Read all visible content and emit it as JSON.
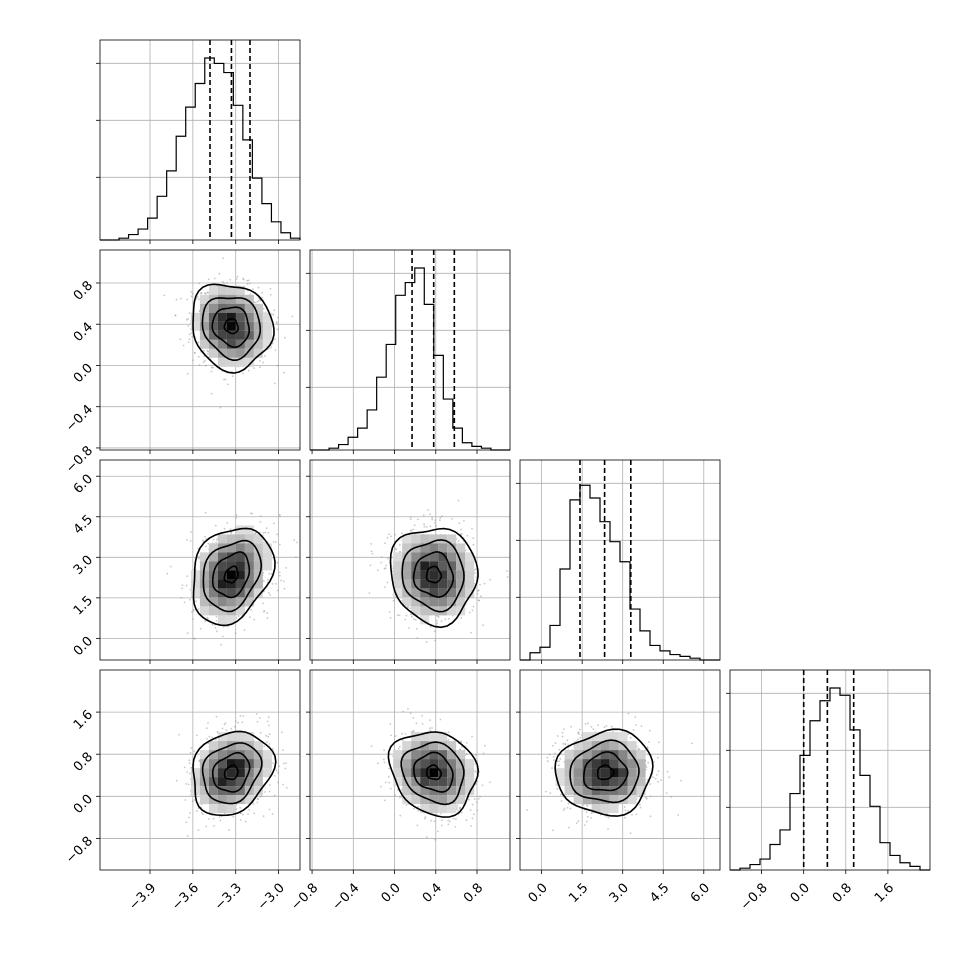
{
  "chart_data": {
    "type": "corner",
    "parameters": [
      {
        "ticks": [
          -3.9,
          -3.6,
          -3.3,
          -3.0
        ],
        "tick_labels": [
          "−3.9",
          "−3.6",
          "−3.3",
          "−3.0"
        ],
        "range": [
          -4.25,
          -2.85
        ],
        "mean": -3.33,
        "sd": 0.135,
        "quantiles": [
          -3.48,
          -3.33,
          -3.2
        ],
        "hist": [
          0,
          0,
          0.01,
          0.03,
          0.06,
          0.12,
          0.24,
          0.38,
          0.57,
          0.73,
          0.86,
          1.0,
          0.97,
          0.92,
          0.74,
          0.55,
          0.34,
          0.2,
          0.1,
          0.04,
          0.01
        ]
      },
      {
        "ticks": [
          -0.8,
          -0.4,
          0.0,
          0.4,
          0.8
        ],
        "tick_labels": [
          "−0.8",
          "−0.4",
          "0.0",
          "0.4",
          "0.8"
        ],
        "range": [
          -0.82,
          1.12
        ],
        "mean": 0.38,
        "sd": 0.2,
        "quantiles": [
          0.17,
          0.38,
          0.58
        ],
        "hist": [
          0,
          0,
          0.01,
          0.03,
          0.07,
          0.12,
          0.22,
          0.4,
          0.58,
          0.85,
          0.92,
          1.0,
          0.8,
          0.52,
          0.28,
          0.12,
          0.04,
          0.02,
          0.01,
          0,
          0
        ]
      },
      {
        "ticks": [
          0.0,
          1.5,
          3.0,
          4.5,
          6.0
        ],
        "tick_labels": [
          "0.0",
          "1.5",
          "3.0",
          "4.5",
          "6.0"
        ],
        "range": [
          -0.8,
          6.6
        ],
        "mean": 2.35,
        "sd": 0.85,
        "quantiles": [
          1.42,
          2.33,
          3.3
        ],
        "hist": [
          0,
          0.04,
          0.07,
          0.19,
          0.5,
          0.88,
          0.96,
          0.89,
          0.76,
          0.65,
          0.54,
          0.28,
          0.16,
          0.08,
          0.05,
          0.03,
          0.02,
          0.01,
          0,
          0
        ]
      },
      {
        "ticks": [
          -0.8,
          0.0,
          0.8,
          1.6
        ],
        "tick_labels": [
          "−0.8",
          "0.0",
          "0.8",
          "1.6"
        ],
        "range": [
          -1.4,
          2.4
        ],
        "mean": 0.45,
        "sd": 0.38,
        "quantiles": [
          0.0,
          0.45,
          0.95
        ],
        "hist": [
          0,
          0.01,
          0.03,
          0.06,
          0.14,
          0.22,
          0.42,
          0.63,
          0.82,
          0.93,
          1.0,
          0.96,
          0.77,
          0.52,
          0.35,
          0.15,
          0.08,
          0.04,
          0.02,
          0
        ]
      }
    ],
    "correlations": {
      "1-0": -0.1,
      "2-0": 0.25,
      "2-1": -0.05,
      "3-0": 0.2,
      "3-1": -0.15,
      "3-2": 0.05
    },
    "grid": true,
    "legend": false
  }
}
